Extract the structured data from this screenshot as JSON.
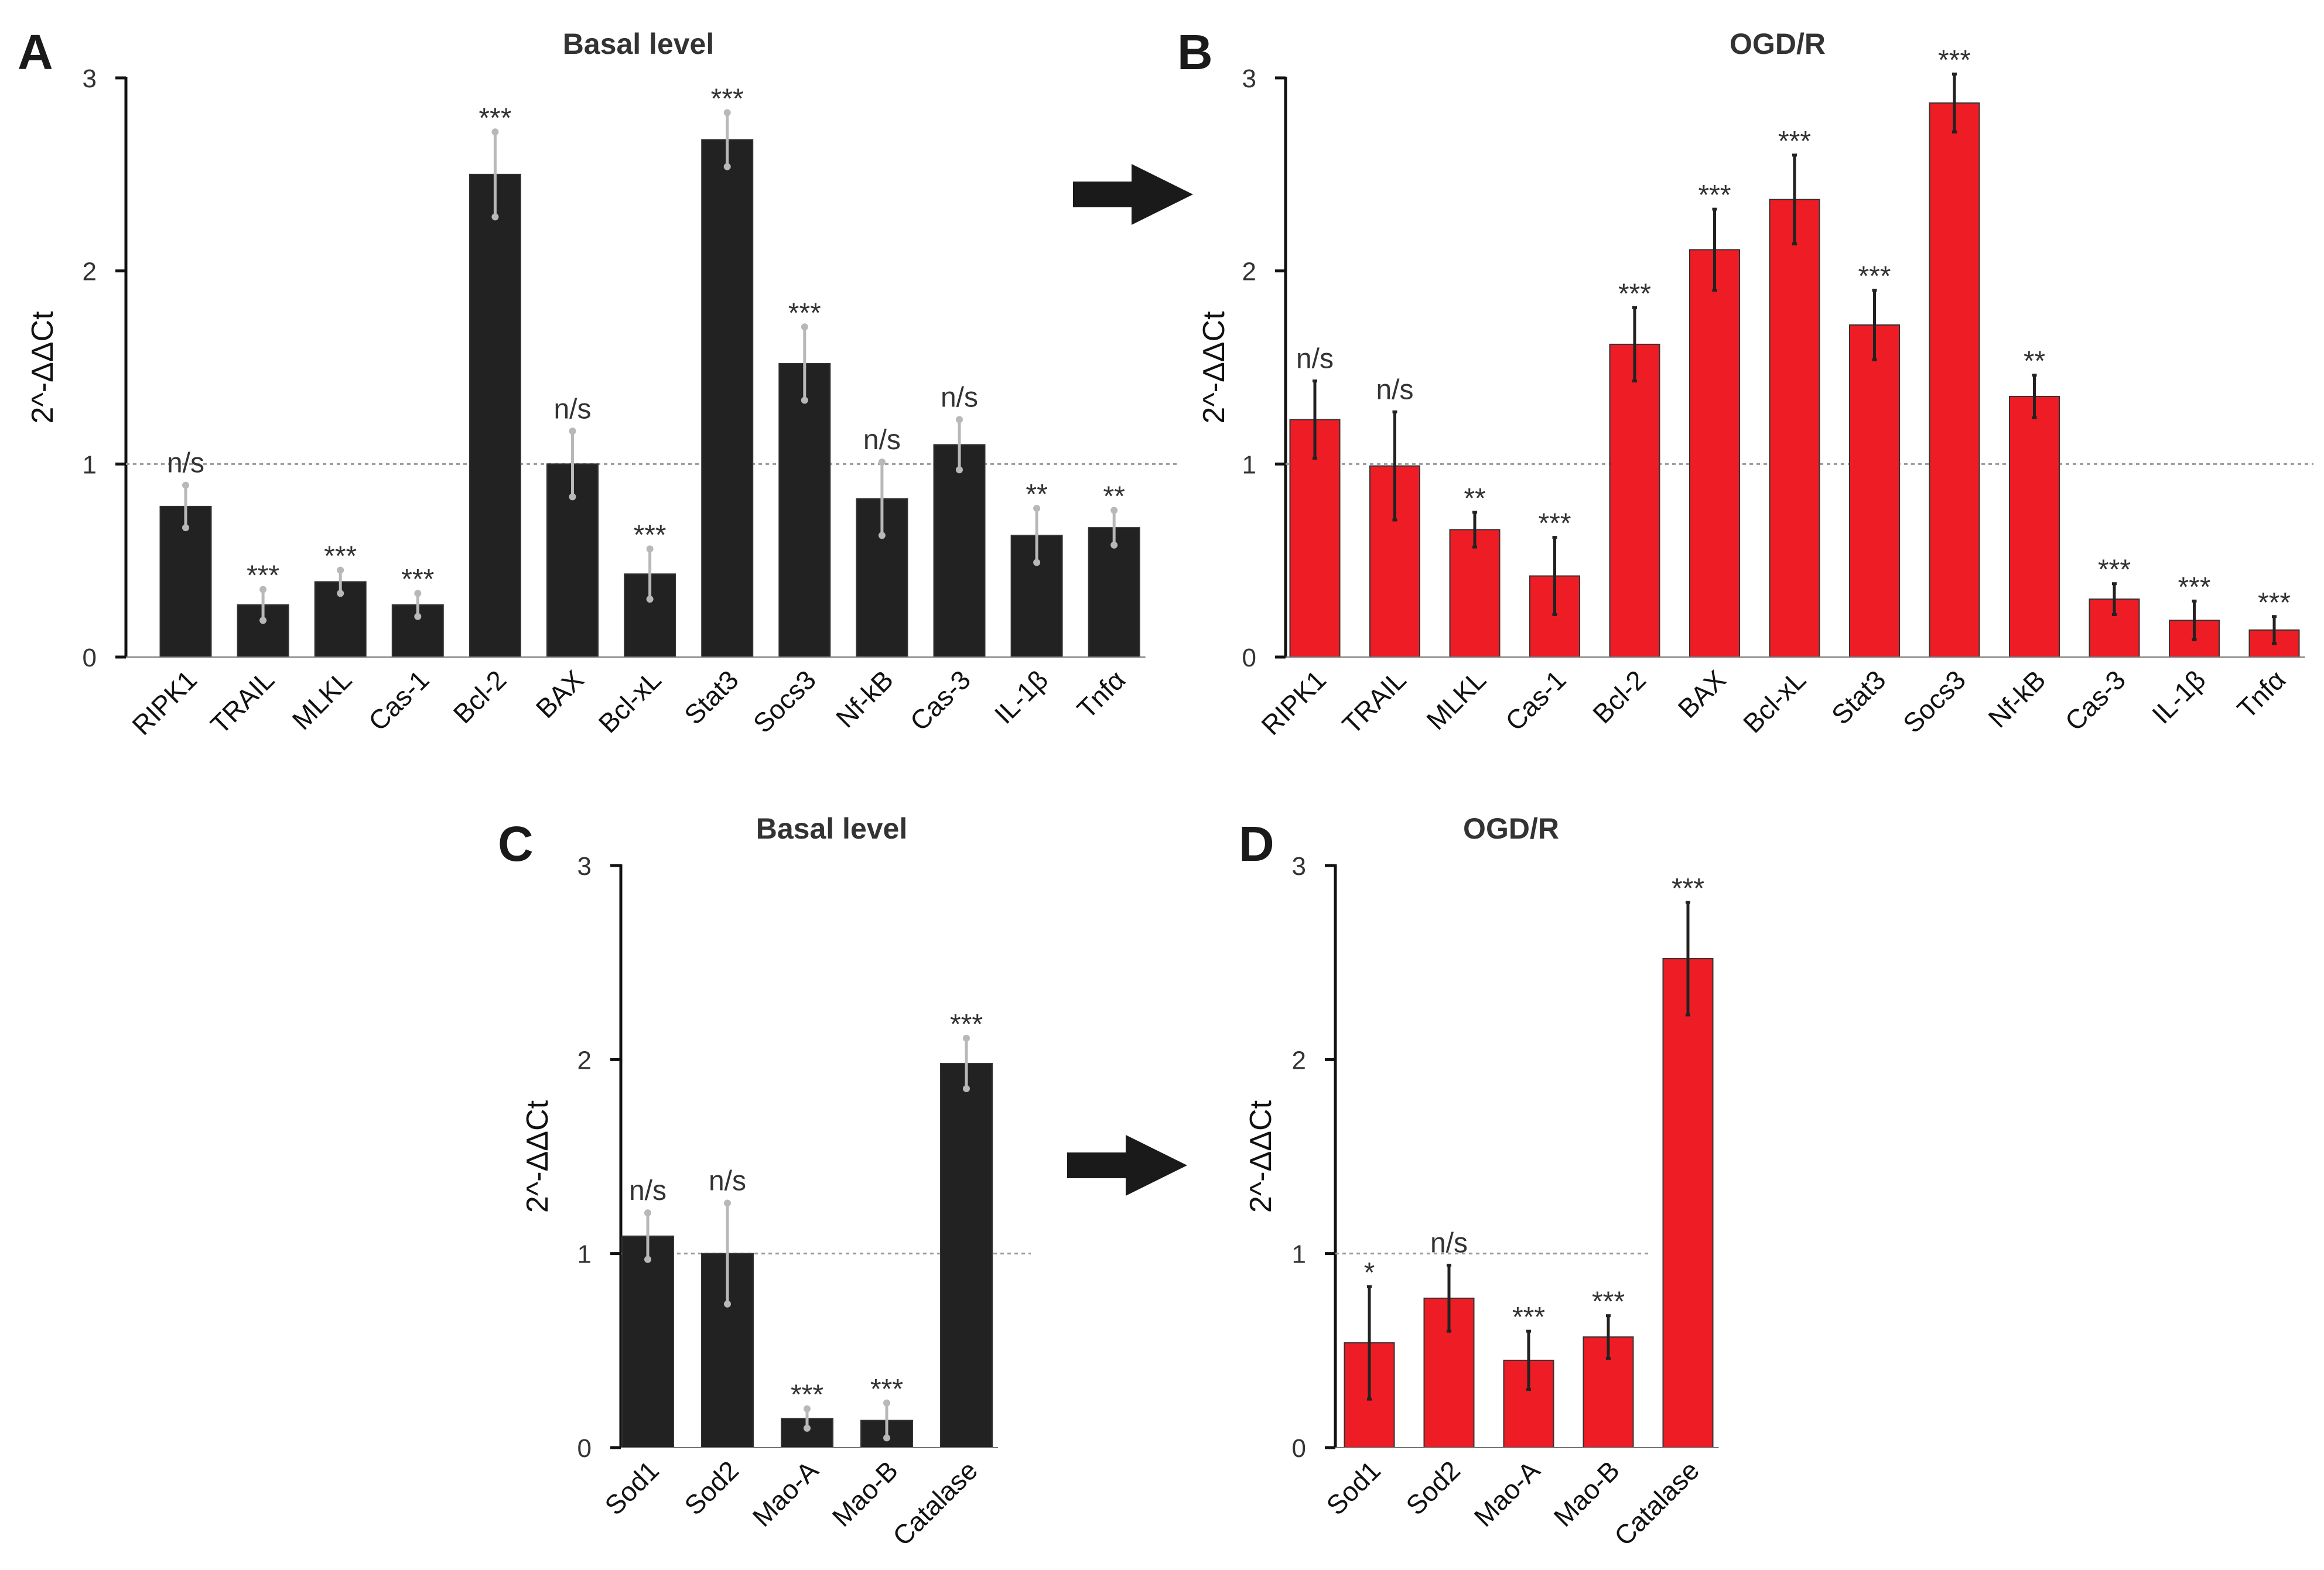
{
  "colors": {
    "black_bar": "#222222",
    "red_bar": "#ee1c24",
    "arrow": "#1a1a1a"
  },
  "icons": [
    "right-arrow-icon",
    "right-arrow-icon"
  ],
  "chart_data": [
    {
      "panel": "A",
      "type": "bar",
      "title": "Basal level",
      "ylabel": "2^-ΔΔCt",
      "ylim": [
        0,
        3
      ],
      "yticks": [
        "0",
        "1",
        "2",
        "3"
      ],
      "reference_line": 1,
      "color": "black",
      "categories": [
        "RIPK1",
        "TRAIL",
        "MLKL",
        "Cas-1",
        "Bcl-2",
        "BAX",
        "Bcl-xL",
        "Stat3",
        "Socs3",
        "Nf-kB",
        "Cas-3",
        "IL-1β",
        "Tnfα"
      ],
      "values": [
        0.78,
        0.27,
        0.39,
        0.27,
        2.5,
        1.0,
        0.43,
        2.68,
        1.52,
        0.82,
        1.1,
        0.63,
        0.67
      ],
      "errors": [
        0.11,
        0.08,
        0.06,
        0.06,
        0.22,
        0.17,
        0.13,
        0.14,
        0.19,
        0.19,
        0.13,
        0.14,
        0.09
      ],
      "significance": [
        "n/s",
        "***",
        "***",
        "***",
        "***",
        "n/s",
        "***",
        "***",
        "***",
        "n/s",
        "n/s",
        "**",
        "**"
      ]
    },
    {
      "panel": "B",
      "type": "bar",
      "title": "OGD/R",
      "ylabel": "2^-ΔΔCt",
      "ylim": [
        0,
        3
      ],
      "yticks": [
        "0",
        "1",
        "2",
        "3"
      ],
      "reference_line": 1,
      "color": "red",
      "categories": [
        "RIPK1",
        "TRAIL",
        "MLKL",
        "Cas-1",
        "Bcl-2",
        "BAX",
        "Bcl-xL",
        "Stat3",
        "Socs3",
        "Nf-kB",
        "Cas-3",
        "IL-1β",
        "Tnfα"
      ],
      "values": [
        1.23,
        0.99,
        0.66,
        0.42,
        1.62,
        2.11,
        2.37,
        1.72,
        2.87,
        1.35,
        0.3,
        0.19,
        0.14
      ],
      "errors": [
        0.2,
        0.28,
        0.09,
        0.2,
        0.19,
        0.21,
        0.23,
        0.18,
        0.15,
        0.11,
        0.08,
        0.1,
        0.07
      ],
      "significance": [
        "n/s",
        "n/s",
        "**",
        "***",
        "***",
        "***",
        "***",
        "***",
        "***",
        "**",
        "***",
        "***",
        "***"
      ]
    },
    {
      "panel": "C",
      "type": "bar",
      "title": "Basal level",
      "ylabel": "2^-ΔΔCt",
      "ylim": [
        0,
        3
      ],
      "yticks": [
        "0",
        "1",
        "2",
        "3"
      ],
      "reference_line": 1,
      "color": "black",
      "categories": [
        "Sod1",
        "Sod2",
        "Mao-A",
        "Mao-B",
        "Catalase"
      ],
      "values": [
        1.09,
        1.0,
        0.15,
        0.14,
        1.98
      ],
      "errors": [
        0.12,
        0.26,
        0.05,
        0.09,
        0.13
      ],
      "significance": [
        "n/s",
        "n/s",
        "***",
        "***",
        "***"
      ]
    },
    {
      "panel": "D",
      "type": "bar",
      "title": "OGD/R",
      "ylabel": "2^-ΔΔCt",
      "ylim": [
        0,
        3
      ],
      "yticks": [
        "0",
        "1",
        "2",
        "3"
      ],
      "reference_line": 1,
      "color": "red",
      "categories": [
        "Sod1",
        "Sod2",
        "Mao-A",
        "Mao-B",
        "Catalase"
      ],
      "values": [
        0.54,
        0.77,
        0.45,
        0.57,
        2.52
      ],
      "errors": [
        0.29,
        0.17,
        0.15,
        0.11,
        0.29
      ],
      "significance": [
        "*",
        "n/s",
        "***",
        "***",
        "***"
      ]
    }
  ]
}
